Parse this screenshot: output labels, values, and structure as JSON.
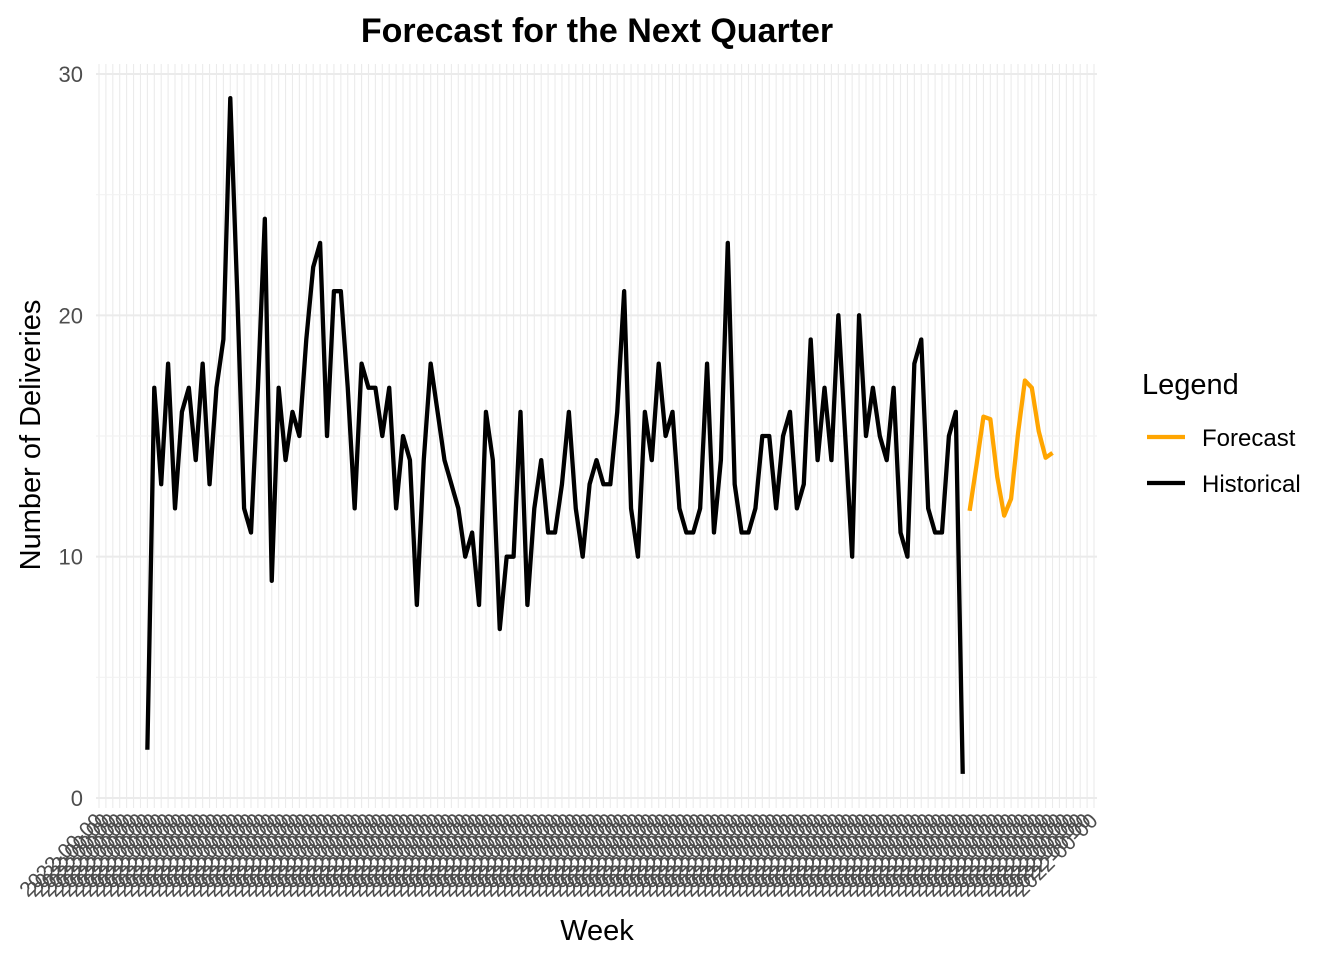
{
  "chart_data": {
    "type": "line",
    "title": "Forecast for the Next Quarter",
    "xlabel": "Week",
    "ylabel": "Number of Deliveries",
    "ylim": [
      0,
      30
    ],
    "yticks": [
      0,
      10,
      20,
      30
    ],
    "grid": true,
    "legend": {
      "title": "Legend",
      "position": "right"
    },
    "x_tick_count": 145,
    "series": [
      {
        "name": "Historical",
        "color": "#000000",
        "start_index": 7,
        "values": [
          2,
          17,
          13,
          18,
          12,
          16,
          17,
          14,
          18,
          13,
          17,
          19,
          29,
          21,
          12,
          11,
          17,
          24,
          9,
          17,
          14,
          16,
          15,
          19,
          22,
          23,
          15,
          21,
          21,
          17,
          12,
          18,
          17,
          17,
          15,
          17,
          12,
          15,
          14,
          8,
          14,
          18,
          16,
          14,
          13,
          12,
          10,
          11,
          8,
          16,
          14,
          7,
          10,
          10,
          16,
          8,
          12,
          14,
          11,
          11,
          13,
          16,
          12,
          10,
          13,
          14,
          13,
          13,
          16,
          21,
          12,
          10,
          16,
          14,
          18,
          15,
          16,
          12,
          11,
          11,
          12,
          18,
          11,
          14,
          23,
          13,
          11,
          11,
          12,
          15,
          15,
          12,
          15,
          16,
          12,
          13,
          19,
          14,
          17,
          14,
          20,
          15,
          10,
          20,
          15,
          17,
          15,
          14,
          17,
          11,
          10,
          18,
          19,
          12,
          11,
          11,
          15,
          16,
          1
        ]
      },
      {
        "name": "Forecast",
        "color": "#FFA500",
        "start_index": 126,
        "values": [
          11.9,
          13.8,
          15.8,
          15.7,
          13.3,
          11.7,
          12.4,
          15.1,
          17.3,
          17.0,
          15.2,
          14.1,
          14.3
        ]
      }
    ],
    "legend_order": [
      "Forecast",
      "Historical"
    ]
  }
}
